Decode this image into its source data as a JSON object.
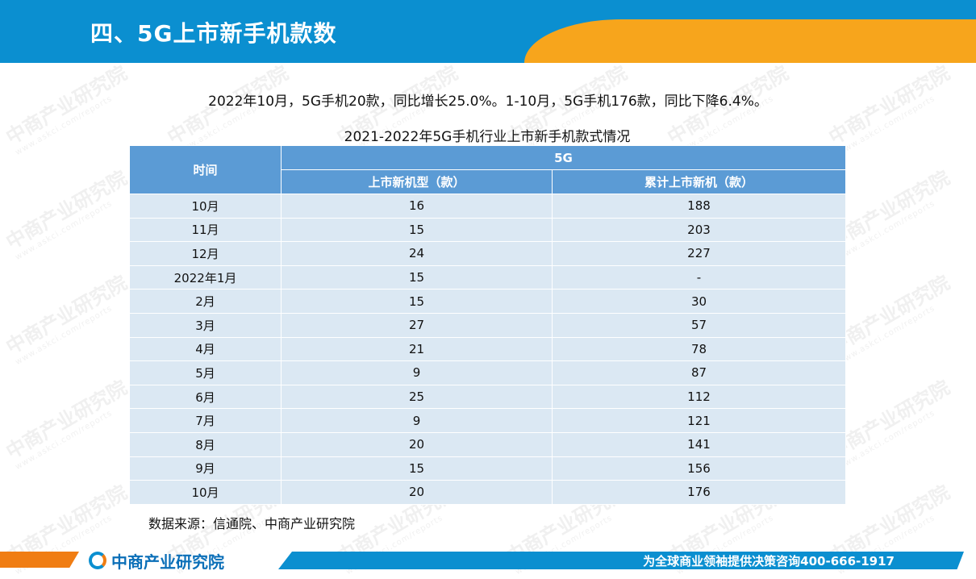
{
  "header": {
    "title": "四、5G上市新手机款数"
  },
  "summary": "2022年10月，5G手机20款，同比增长25.0%。1-10月，5G手机176款，同比下降6.4%。",
  "table": {
    "caption": "2021-2022年5G手机行业上市新手机款式情况",
    "header_time": "时间",
    "header_group": "5G",
    "header_col2": "上市新机型（款）",
    "header_col3": "累计上市新机（款）",
    "rows": [
      {
        "time": "10月",
        "models": "16",
        "cumulative": "188"
      },
      {
        "time": "11月",
        "models": "15",
        "cumulative": "203"
      },
      {
        "time": "12月",
        "models": "24",
        "cumulative": "227"
      },
      {
        "time": "2022年1月",
        "models": "15",
        "cumulative": "-"
      },
      {
        "time": "2月",
        "models": "15",
        "cumulative": "30"
      },
      {
        "time": "3月",
        "models": "27",
        "cumulative": "57"
      },
      {
        "time": "4月",
        "models": "21",
        "cumulative": "78"
      },
      {
        "time": "5月",
        "models": "9",
        "cumulative": "87"
      },
      {
        "time": "6月",
        "models": "25",
        "cumulative": "112"
      },
      {
        "time": "7月",
        "models": "9",
        "cumulative": "121"
      },
      {
        "time": "8月",
        "models": "20",
        "cumulative": "141"
      },
      {
        "time": "9月",
        "models": "15",
        "cumulative": "156"
      },
      {
        "time": "10月",
        "models": "20",
        "cumulative": "176"
      }
    ]
  },
  "source": "数据来源：信通院、中商产业研究院",
  "footer": {
    "logo_text": "中商产业研究院",
    "slogan": "为全球商业领袖提供决策咨询400-666-1917"
  },
  "watermark": {
    "text": "中商产业研究院",
    "url": "www.askci.com/reports"
  },
  "colors": {
    "header_blue": "#0b8fd0",
    "accent_orange": "#f7a51c",
    "table_header": "#5b9bd5",
    "table_row": "#dbe8f3"
  }
}
